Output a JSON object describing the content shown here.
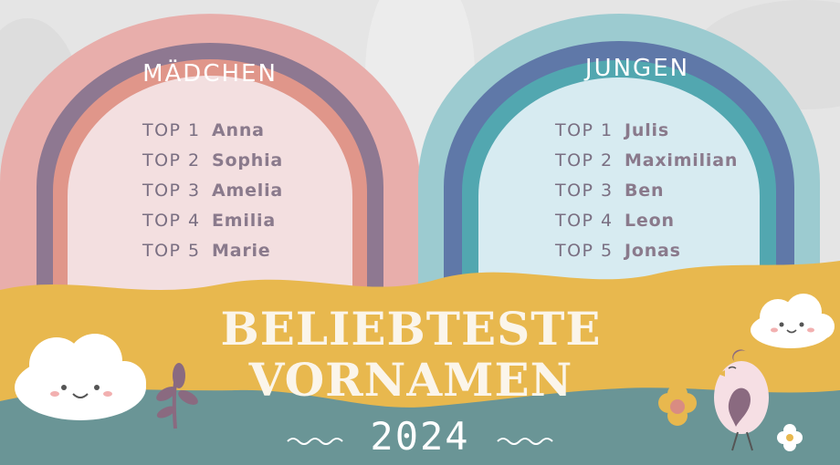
{
  "girls": {
    "title": "MÄDCHEN",
    "items": [
      {
        "rank": "TOP 1",
        "name": "Anna"
      },
      {
        "rank": "TOP 2",
        "name": "Sophia"
      },
      {
        "rank": "TOP 3",
        "name": "Amelia"
      },
      {
        "rank": "TOP 4",
        "name": "Emilia"
      },
      {
        "rank": "TOP 5",
        "name": "Marie"
      }
    ]
  },
  "boys": {
    "title": "JUNGEN",
    "items": [
      {
        "rank": "TOP 1",
        "name": "Julis"
      },
      {
        "rank": "TOP 2",
        "name": "Maximilian"
      },
      {
        "rank": "TOP 3",
        "name": "Ben"
      },
      {
        "rank": "TOP 4",
        "name": "Leon"
      },
      {
        "rank": "TOP 5",
        "name": "Jonas"
      }
    ]
  },
  "headline": {
    "line1": "BELIEBTESTE",
    "line2": "VORNAMEN"
  },
  "year": "2024",
  "colors": {
    "girls_outer": "#e8aeab",
    "girls_mid": "#8e7891",
    "girls_inner": "#e0968a",
    "girls_fill": "#f3dfe0",
    "boys_outer": "#9ccbd0",
    "boys_mid": "#5f78a8",
    "boys_inner": "#52a7b0",
    "boys_fill": "#d7ebf1",
    "sand": "#e8b84e",
    "teal": "#6a9596"
  }
}
